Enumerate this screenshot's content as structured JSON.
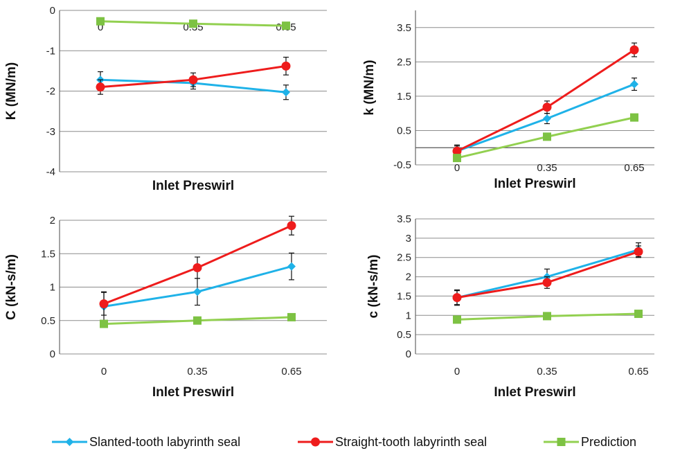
{
  "chart_data": [
    {
      "type": "line",
      "x": [
        "0",
        "0.35",
        "0.65"
      ],
      "xlabel": "Inlet Preswirl",
      "ylabel": "K (MN/m)",
      "ylim": [
        -4,
        0
      ],
      "yticks": [
        0,
        -1,
        -2,
        -3,
        -4
      ],
      "x_tick_labels_position": "inside-near-top",
      "grid": true,
      "series": [
        {
          "name": "Slanted-tooth labyrinth seal",
          "values": [
            -1.72,
            -1.8,
            -2.03
          ],
          "error": [
            0.2,
            0.15,
            0.18
          ]
        },
        {
          "name": "Straight-tooth labyrinth seal",
          "values": [
            -1.9,
            -1.72,
            -1.38
          ],
          "error": [
            0.18,
            0.17,
            0.22
          ]
        },
        {
          "name": "Prediction",
          "values": [
            -0.27,
            -0.33,
            -0.38
          ]
        }
      ]
    },
    {
      "type": "line",
      "x": [
        "0",
        "0.35",
        "0.65"
      ],
      "xlabel": "Inlet Preswirl",
      "ylabel": "k (MN/m)",
      "ylim": [
        -0.5,
        4
      ],
      "yticks": [
        3.5,
        2.5,
        1.5,
        0.5,
        -0.5
      ],
      "grid": true,
      "series": [
        {
          "name": "Slanted-tooth labyrinth seal",
          "values": [
            -0.1,
            0.85,
            1.85
          ],
          "error": [
            0.15,
            0.15,
            0.18
          ]
        },
        {
          "name": "Straight-tooth labyrinth seal",
          "values": [
            -0.1,
            1.18,
            2.85
          ],
          "error": [
            0.18,
            0.18,
            0.2
          ]
        },
        {
          "name": "Prediction",
          "values": [
            -0.3,
            0.32,
            0.88
          ]
        }
      ]
    },
    {
      "type": "line",
      "x": [
        "0",
        "0.35",
        "0.65"
      ],
      "xlabel": "Inlet Preswirl",
      "ylabel": "C (kN-s/m)",
      "ylim": [
        0,
        2
      ],
      "yticks": [
        0,
        0.5,
        1,
        1.5,
        2
      ],
      "grid": true,
      "series": [
        {
          "name": "Slanted-tooth labyrinth seal",
          "values": [
            0.71,
            0.93,
            1.31
          ],
          "error": [
            0.22,
            0.2,
            0.2
          ]
        },
        {
          "name": "Straight-tooth labyrinth seal",
          "values": [
            0.75,
            1.29,
            1.92
          ],
          "error": [
            0.17,
            0.16,
            0.14
          ]
        },
        {
          "name": "Prediction",
          "values": [
            0.45,
            0.5,
            0.55
          ]
        }
      ]
    },
    {
      "type": "line",
      "x": [
        "0",
        "0.35",
        "0.65"
      ],
      "xlabel": "Inlet Preswirl",
      "ylabel": "c (kN-s/m)",
      "ylim": [
        0,
        3.5
      ],
      "yticks": [
        0,
        0.5,
        1,
        1.5,
        2,
        2.5,
        3,
        3.5
      ],
      "grid": true,
      "series": [
        {
          "name": "Slanted-tooth labyrinth seal",
          "values": [
            1.46,
            2.0,
            2.7
          ],
          "error": [
            0.2,
            0.2,
            0.18
          ]
        },
        {
          "name": "Straight-tooth labyrinth seal",
          "values": [
            1.46,
            1.85,
            2.65
          ],
          "error": [
            0.18,
            0.15,
            0.15
          ]
        },
        {
          "name": "Prediction",
          "values": [
            0.89,
            0.98,
            1.04
          ]
        }
      ]
    }
  ],
  "legend": {
    "placement": "bottom",
    "items": [
      {
        "label": "Slanted-tooth labyrinth seal",
        "color": "#1fb2e8",
        "marker": "diamond"
      },
      {
        "label": "Straight-tooth labyrinth seal",
        "color": "#ee1c1c",
        "marker": "circle"
      },
      {
        "label": "Prediction",
        "color": "#92d050",
        "marker": "square"
      }
    ]
  },
  "colors": {
    "slanted": "#1fb2e8",
    "straight": "#ee1c1c",
    "prediction": "#92d050",
    "marker_prediction": "#7dc243",
    "grid": "#8c8c8c"
  }
}
